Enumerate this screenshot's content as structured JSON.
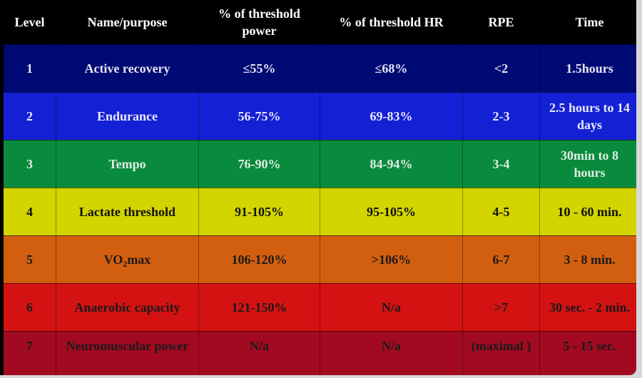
{
  "table": {
    "headers": [
      "Level",
      "Name/purpose",
      "% of threshold power",
      "% of threshold HR",
      "RPE",
      "Time"
    ],
    "rows": [
      {
        "level": "1",
        "name": "Active recovery",
        "power": "≤55%",
        "hr": "≤68%",
        "rpe": "<2",
        "time": "1.5hours"
      },
      {
        "level": "2",
        "name": "Endurance",
        "power": "56-75%",
        "hr": "69-83%",
        "rpe": "2-3",
        "time": "2.5 hours to 14 days"
      },
      {
        "level": "3",
        "name": "Tempo",
        "power": "76-90%",
        "hr": "84-94%",
        "rpe": "3-4",
        "time": "30min to  8 hours"
      },
      {
        "level": "4",
        "name": "Lactate threshold",
        "power": "91-105%",
        "hr": "95-105%",
        "rpe": "4-5",
        "time": "10 - 60 min."
      },
      {
        "level": "5",
        "name_main": "VO",
        "name_sub": "2",
        "name_tail": "max",
        "power": "106-120%",
        "hr": ">106%",
        "rpe": "6-7",
        "time": "3 - 8 min."
      },
      {
        "level": "6",
        "name": "Anaerobic capacity",
        "power": "121-150%",
        "hr": "N/a",
        "rpe": ">7",
        "time": "30 sec. - 2 min."
      },
      {
        "level": "7",
        "name": "Neuromuscular power",
        "power": "N/a",
        "hr": "N/a",
        "rpe": "(maximal )",
        "time": "5 - 15 sec."
      }
    ]
  },
  "colors": {
    "header": "#000000",
    "level_1": "#000a75",
    "level_2": "#1420d4",
    "level_3": "#0a8a3c",
    "level_4": "#d3d400",
    "level_5": "#d25e10",
    "level_6": "#d41212",
    "level_7": "#a10a21"
  }
}
